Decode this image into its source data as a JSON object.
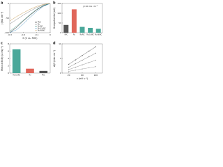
{
  "chart_data": [
    {
      "type": "line",
      "label": "a",
      "xlabel": "E (V vs. RHE)",
      "ylabel": "j (mA cm⁻²)",
      "x": [
        -0.3,
        -0.25,
        -0.2,
        -0.15,
        -0.1,
        -0.05,
        0
      ],
      "xlim": [
        -0.3,
        0
      ],
      "xticks": [
        -0.3,
        -0.2,
        -0.1,
        0
      ],
      "ylim": [
        -100,
        0
      ],
      "yticks": [
        -100,
        -50,
        0
      ],
      "legend": "lower-right",
      "series": [
        {
          "name": "Pt/C",
          "color": "#222222",
          "values": [
            -100,
            -82,
            -60,
            -40,
            -22,
            -8,
            0
          ]
        },
        {
          "name": "Ru",
          "color": "#888888",
          "values": [
            -70,
            -55,
            -40,
            -26,
            -14,
            -5,
            0
          ]
        },
        {
          "name": "Ru/NC",
          "color": "#3a8f80",
          "values": [
            -95,
            -78,
            -58,
            -38,
            -20,
            -7,
            0
          ]
        },
        {
          "name": "Ru₁Co/NC",
          "color": "#5a9ec9",
          "values": [
            -100,
            -90,
            -70,
            -48,
            -27,
            -10,
            0
          ]
        },
        {
          "name": "Ru₁Ni/NC",
          "color": "#c9a05a",
          "values": [
            -60,
            -45,
            -32,
            -20,
            -10,
            -3,
            0
          ]
        }
      ]
    },
    {
      "type": "bar",
      "label": "b",
      "ylabel": "Overpotential (mV)",
      "annotation": "j=10 mA cm⁻²",
      "categories": [
        "Pt/C",
        "Ru",
        "Ru/NC",
        "Ru₁Co/NC",
        "Ru₁Ni/NC"
      ],
      "values": [
        40,
        120,
        30,
        25,
        20
      ],
      "colors": [
        "#555555",
        "#e0665a",
        "#4aa89a",
        "#4aa89a",
        "#4aa89a"
      ],
      "ylim": [
        0,
        150
      ],
      "yticks": [
        0,
        50,
        100,
        150
      ]
    },
    {
      "type": "bar",
      "label": "c",
      "ylabel": "Mass activity (A mg⁻¹)",
      "categories": [
        "Ru₁Co/NC",
        "Ru",
        "Pt/C"
      ],
      "values": [
        6.5,
        1.2,
        0.6
      ],
      "colors": [
        "#4aa89a",
        "#e0665a",
        "#555555"
      ],
      "ylim": [
        0,
        8
      ],
      "yticks": [
        0,
        2,
        4,
        6,
        8
      ]
    },
    {
      "type": "line",
      "markers": true,
      "label": "d",
      "xlabel": "ν (mV s⁻¹)",
      "ylabel": "Δj/2 (mA cm⁻²)",
      "x": [
        20,
        40,
        60,
        80,
        100
      ],
      "xlim": [
        0,
        120
      ],
      "xticks": [
        20,
        60,
        100
      ],
      "ylim": [
        0,
        10
      ],
      "yticks": [
        0,
        5,
        10
      ],
      "series": [
        {
          "name": "Ru₁Co/NC",
          "color": "#666666",
          "values": [
            3,
            4.5,
            6,
            7.5,
            9
          ]
        },
        {
          "name": "Ru₁Ni/NC",
          "color": "#888888",
          "values": [
            2,
            3.2,
            4.4,
            5.6,
            6.8
          ]
        },
        {
          "name": "Ru/NC",
          "color": "#999999",
          "values": [
            1.2,
            2,
            2.8,
            3.6,
            4.4
          ]
        },
        {
          "name": "Ru",
          "color": "#aaaaaa",
          "values": [
            0.6,
            1,
            1.4,
            1.8,
            2.2
          ]
        }
      ]
    }
  ]
}
